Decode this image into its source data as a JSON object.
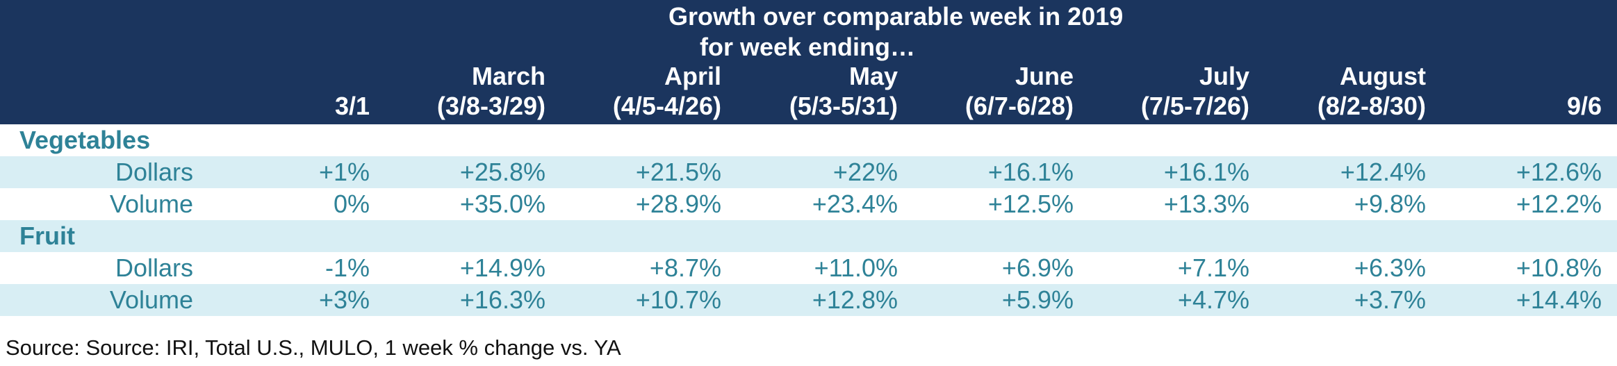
{
  "chart_data": {
    "type": "table",
    "title_lines": [
      "Growth over comparable week in 2019",
      "for week ending…"
    ],
    "columns": [
      {
        "line1": "",
        "line2": "3/1"
      },
      {
        "line1": "March",
        "line2": "(3/8-3/29)"
      },
      {
        "line1": "April",
        "line2": "(4/5-4/26)"
      },
      {
        "line1": "May",
        "line2": "(5/3-5/31)"
      },
      {
        "line1": "June",
        "line2": "(6/7-6/28)"
      },
      {
        "line1": "July",
        "line2": "(7/5-7/26)"
      },
      {
        "line1": "August",
        "line2": "(8/2-8/30)"
      },
      {
        "line1": "",
        "line2": "9/6"
      }
    ],
    "groups": [
      {
        "name": "Vegetables",
        "rows": [
          {
            "label": "Dollars",
            "values": [
              "+1%",
              "+25.8%",
              "+21.5%",
              "+22%",
              "+16.1%",
              "+16.1%",
              "+12.4%",
              "+12.6%"
            ]
          },
          {
            "label": "Volume",
            "values": [
              "0%",
              "+35.0%",
              "+28.9%",
              "+23.4%",
              "+12.5%",
              "+13.3%",
              "+9.8%",
              "+12.2%"
            ]
          }
        ]
      },
      {
        "name": "Fruit",
        "rows": [
          {
            "label": "Dollars",
            "values": [
              "-1%",
              "+14.9%",
              "+8.7%",
              "+11.0%",
              "+6.9%",
              "+7.1%",
              "+6.3%",
              "+10.8%"
            ]
          },
          {
            "label": "Volume",
            "values": [
              "+3%",
              "+16.3%",
              "+10.7%",
              "+12.8%",
              "+5.9%",
              "+4.7%",
              "+3.7%",
              "+14.4%"
            ]
          }
        ]
      }
    ],
    "source": "Source: Source: IRI, Total U.S., MULO, 1 week % change vs. YA"
  },
  "colors": {
    "header_bg": "#1b355e",
    "header_text": "#ffffff",
    "body_text": "#2e8297",
    "band_light": "#d8eef4",
    "source_text": "#111111"
  }
}
